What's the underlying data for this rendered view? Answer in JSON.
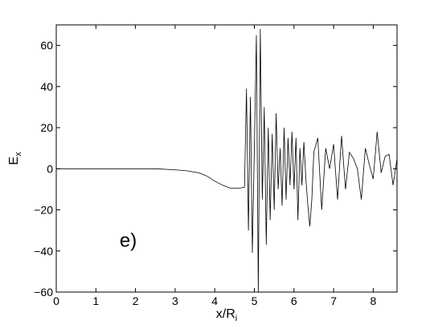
{
  "chart_data": {
    "type": "line",
    "title": "",
    "xlabel": "x/R",
    "xlabel_sub": "i",
    "ylabel": "E",
    "ylabel_sub": "x",
    "annotation": "e)",
    "xlim": [
      0,
      8.6
    ],
    "ylim": [
      -60,
      70
    ],
    "x_ticks": [
      0,
      1,
      2,
      3,
      4,
      5,
      6,
      7,
      8
    ],
    "y_ticks": [
      -60,
      -40,
      -20,
      0,
      20,
      40,
      60
    ],
    "grid": false,
    "legend": "none",
    "line_color": "#000000",
    "series": [
      {
        "x": [
          0,
          0.5,
          1,
          1.5,
          2,
          2.5,
          3,
          3.3,
          3.6,
          3.8,
          4.0,
          4.2,
          4.4,
          4.6,
          4.75,
          4.8,
          4.85,
          4.9,
          4.95,
          5.0,
          5.05,
          5.1,
          5.15,
          5.2,
          5.25,
          5.3,
          5.35,
          5.4,
          5.45,
          5.5,
          5.55,
          5.6,
          5.65,
          5.7,
          5.75,
          5.8,
          5.85,
          5.9,
          5.95,
          6.0,
          6.05,
          6.1,
          6.15,
          6.2,
          6.25,
          6.3,
          6.35,
          6.4,
          6.45,
          6.5,
          6.6,
          6.7,
          6.8,
          6.9,
          7.0,
          7.1,
          7.2,
          7.3,
          7.4,
          7.5,
          7.6,
          7.7,
          7.8,
          7.9,
          8.0,
          8.1,
          8.2,
          8.3,
          8.4,
          8.5,
          8.6
        ],
        "y": [
          0,
          0,
          0,
          0,
          0,
          0,
          -0.5,
          -1,
          -2,
          -3.5,
          -6,
          -8,
          -9.5,
          -9.5,
          -9,
          39,
          -30,
          35,
          -41,
          10,
          65,
          -60,
          68,
          -15,
          30,
          -37,
          20,
          -25,
          17,
          -20,
          27,
          -10,
          10,
          -18,
          20,
          -15,
          15,
          -8,
          18,
          -10,
          15,
          -25,
          10,
          -8,
          13,
          -5,
          -18,
          -28,
          -15,
          8,
          15,
          -20,
          10,
          0,
          12,
          -15,
          16,
          -10,
          8,
          5,
          0,
          -15,
          10,
          2,
          -5,
          18,
          -2,
          6,
          7,
          -8,
          5
        ]
      }
    ]
  }
}
